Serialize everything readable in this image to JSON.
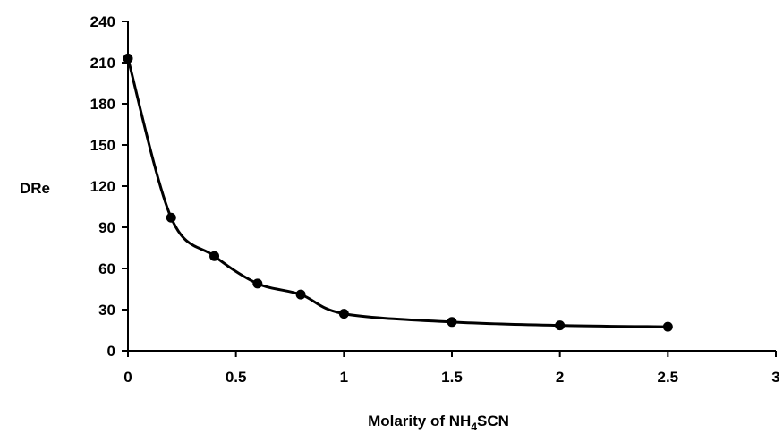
{
  "chart_data": {
    "type": "line",
    "title": "",
    "xlabel": {
      "prefix": "Molarity of NH",
      "subscript": "4",
      "suffix": "SCN"
    },
    "ylabel": "DRe",
    "xlim": [
      0,
      3
    ],
    "ylim": [
      0,
      240
    ],
    "x_ticks": [
      "0",
      "0.5",
      "1",
      "1.5",
      "2",
      "2.5",
      "3"
    ],
    "y_ticks": [
      "0",
      "30",
      "60",
      "90",
      "120",
      "150",
      "180",
      "210",
      "240"
    ],
    "grid": false,
    "legend": "none",
    "series": [
      {
        "marker": "circle",
        "color": "#000000",
        "smooth": true,
        "x": [
          0,
          0.2,
          0.4,
          0.6,
          0.8,
          1.0,
          1.5,
          2.0,
          2.5
        ],
        "y": [
          213,
          97,
          69,
          49,
          41,
          27,
          21,
          18.5,
          17.5
        ]
      }
    ]
  }
}
